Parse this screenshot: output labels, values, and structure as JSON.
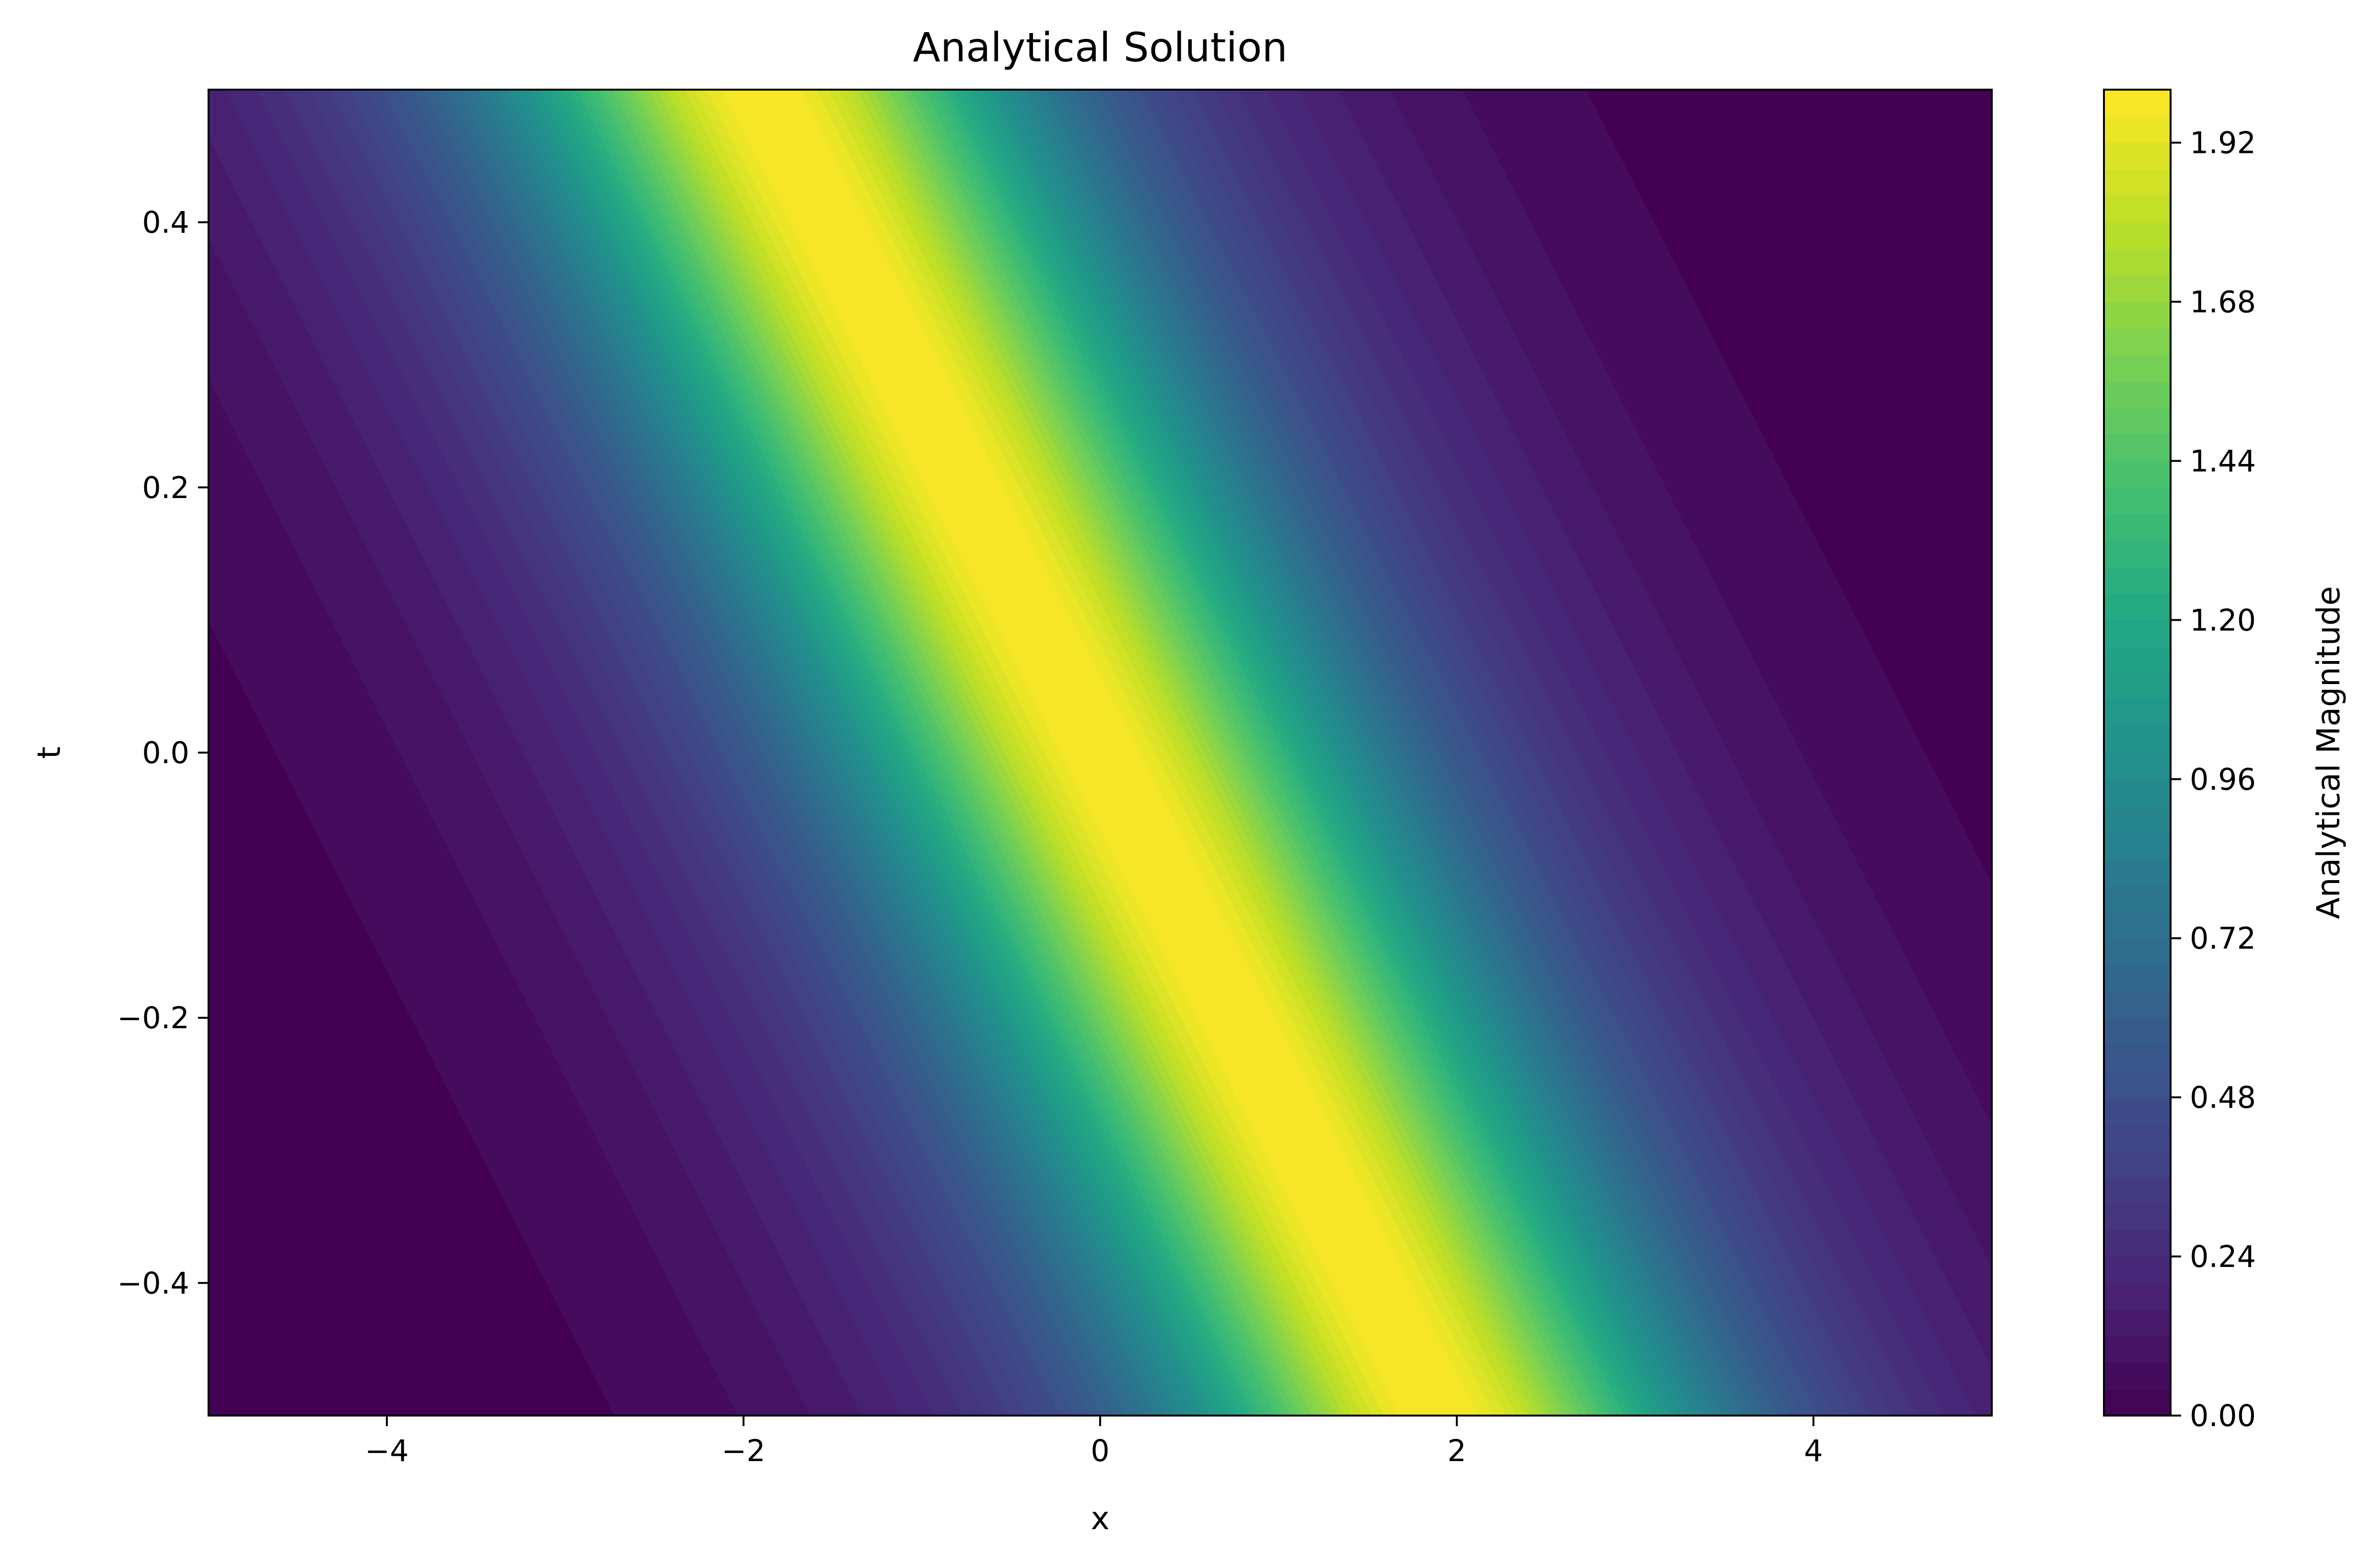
{
  "chart_data": {
    "type": "heatmap",
    "title": "Analytical Solution",
    "xlabel": "x",
    "ylabel": "t",
    "xlim": [
      -5,
      5
    ],
    "ylim": [
      -0.5,
      0.5
    ],
    "x_ticks": [
      -4,
      -2,
      0,
      2,
      4
    ],
    "x_tick_labels": [
      "−4",
      "−2",
      "0",
      "2",
      "4"
    ],
    "y_ticks": [
      -0.4,
      -0.2,
      0.0,
      0.2,
      0.4
    ],
    "y_tick_labels": [
      "−0.4",
      "−0.2",
      "0.0",
      "0.2",
      "0.4"
    ],
    "colormap": "viridis",
    "colorbar": {
      "label": "Analytical Magnitude",
      "range": [
        0.0,
        2.0
      ],
      "ticks": [
        0.0,
        0.24,
        0.48,
        0.72,
        0.96,
        1.2,
        1.44,
        1.68,
        1.92
      ],
      "tick_labels": [
        "0.00",
        "0.24",
        "0.48",
        "0.72",
        "0.96",
        "1.20",
        "1.44",
        "1.68",
        "1.92"
      ]
    },
    "field": {
      "peak_value": 2.0,
      "ridge_x_at_t": [
        {
          "t": -0.5,
          "x": 1.9
        },
        {
          "t": 0.0,
          "x": 0.0
        },
        {
          "t": 0.5,
          "x": -1.9
        }
      ]
    },
    "grid": false,
    "legend": "none"
  }
}
